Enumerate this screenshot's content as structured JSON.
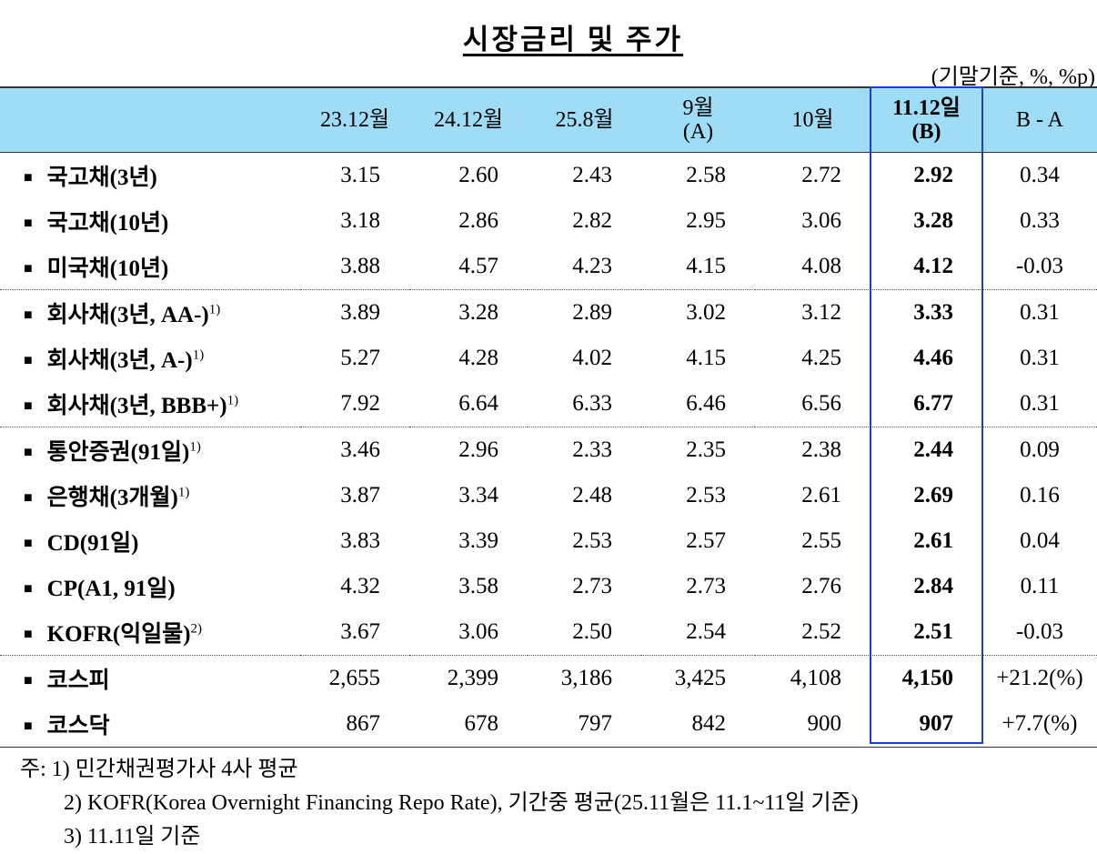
{
  "title": "시장금리 및 주가",
  "unit": "(기말기준, %, %p)",
  "header": [
    [
      "23.12월"
    ],
    [
      "24.12월"
    ],
    [
      "25.8월"
    ],
    [
      "9월",
      "(A)"
    ],
    [
      "10월"
    ],
    [
      "11.12일",
      "(B)"
    ],
    [
      "B - A"
    ]
  ],
  "groups": [
    [
      {
        "label": "국고채(3년)",
        "values": [
          "3.15",
          "2.60",
          "2.43",
          "2.58",
          "2.72",
          "2.92"
        ],
        "diff": "0.34"
      },
      {
        "label": "국고채(10년)",
        "values": [
          "3.18",
          "2.86",
          "2.82",
          "2.95",
          "3.06",
          "3.28"
        ],
        "diff": "0.33"
      },
      {
        "label": "미국채(10년)",
        "values": [
          "3.88",
          "4.57",
          "4.23",
          "4.15",
          "4.08",
          "4.12"
        ],
        "diff": "-0.03"
      }
    ],
    [
      {
        "label": "회사채(3년, AA-)",
        "note": "1)",
        "values": [
          "3.89",
          "3.28",
          "2.89",
          "3.02",
          "3.12",
          "3.33"
        ],
        "diff": "0.31"
      },
      {
        "label": "회사채(3년, A-)",
        "note": "1)",
        "values": [
          "5.27",
          "4.28",
          "4.02",
          "4.15",
          "4.25",
          "4.46"
        ],
        "diff": "0.31"
      },
      {
        "label": "회사채(3년, BBB+)",
        "note": "1)",
        "values": [
          "7.92",
          "6.64",
          "6.33",
          "6.46",
          "6.56",
          "6.77"
        ],
        "diff": "0.31"
      }
    ],
    [
      {
        "label": "통안증권(91일)",
        "note": "1)",
        "values": [
          "3.46",
          "2.96",
          "2.33",
          "2.35",
          "2.38",
          "2.44"
        ],
        "diff": "0.09"
      },
      {
        "label": "은행채(3개월)",
        "note": "1)",
        "values": [
          "3.87",
          "3.34",
          "2.48",
          "2.53",
          "2.61",
          "2.69"
        ],
        "diff": "0.16"
      },
      {
        "label": "CD(91일)",
        "values": [
          "3.83",
          "3.39",
          "2.53",
          "2.57",
          "2.55",
          "2.61"
        ],
        "diff": "0.04"
      },
      {
        "label": "CP(A1, 91일)",
        "values": [
          "4.32",
          "3.58",
          "2.73",
          "2.73",
          "2.76",
          "2.84"
        ],
        "diff": "0.11"
      },
      {
        "label": "KOFR(익일물)",
        "note": "2)",
        "values": [
          "3.67",
          "3.06",
          "2.50",
          "2.54",
          "2.52",
          "2.51"
        ],
        "diff": "-0.03"
      }
    ],
    [
      {
        "label": "코스피",
        "values": [
          "2,655",
          "2,399",
          "3,186",
          "3,425",
          "4,108",
          "4,150"
        ],
        "diff": "+21.2(%)"
      },
      {
        "label": "코스닥",
        "values": [
          "867",
          "678",
          "797",
          "842",
          "900",
          "907"
        ],
        "diff": "+7.7(%)"
      }
    ]
  ],
  "notes": {
    "prefix": "주:",
    "items": [
      "1) 민간채권평가사 4사 평균",
      "2) KOFR(Korea Overnight Financing Repo Rate), 기간중 평균(25.11월은 11.1~11일 기준)",
      "3) 11.11일 기준"
    ]
  }
}
